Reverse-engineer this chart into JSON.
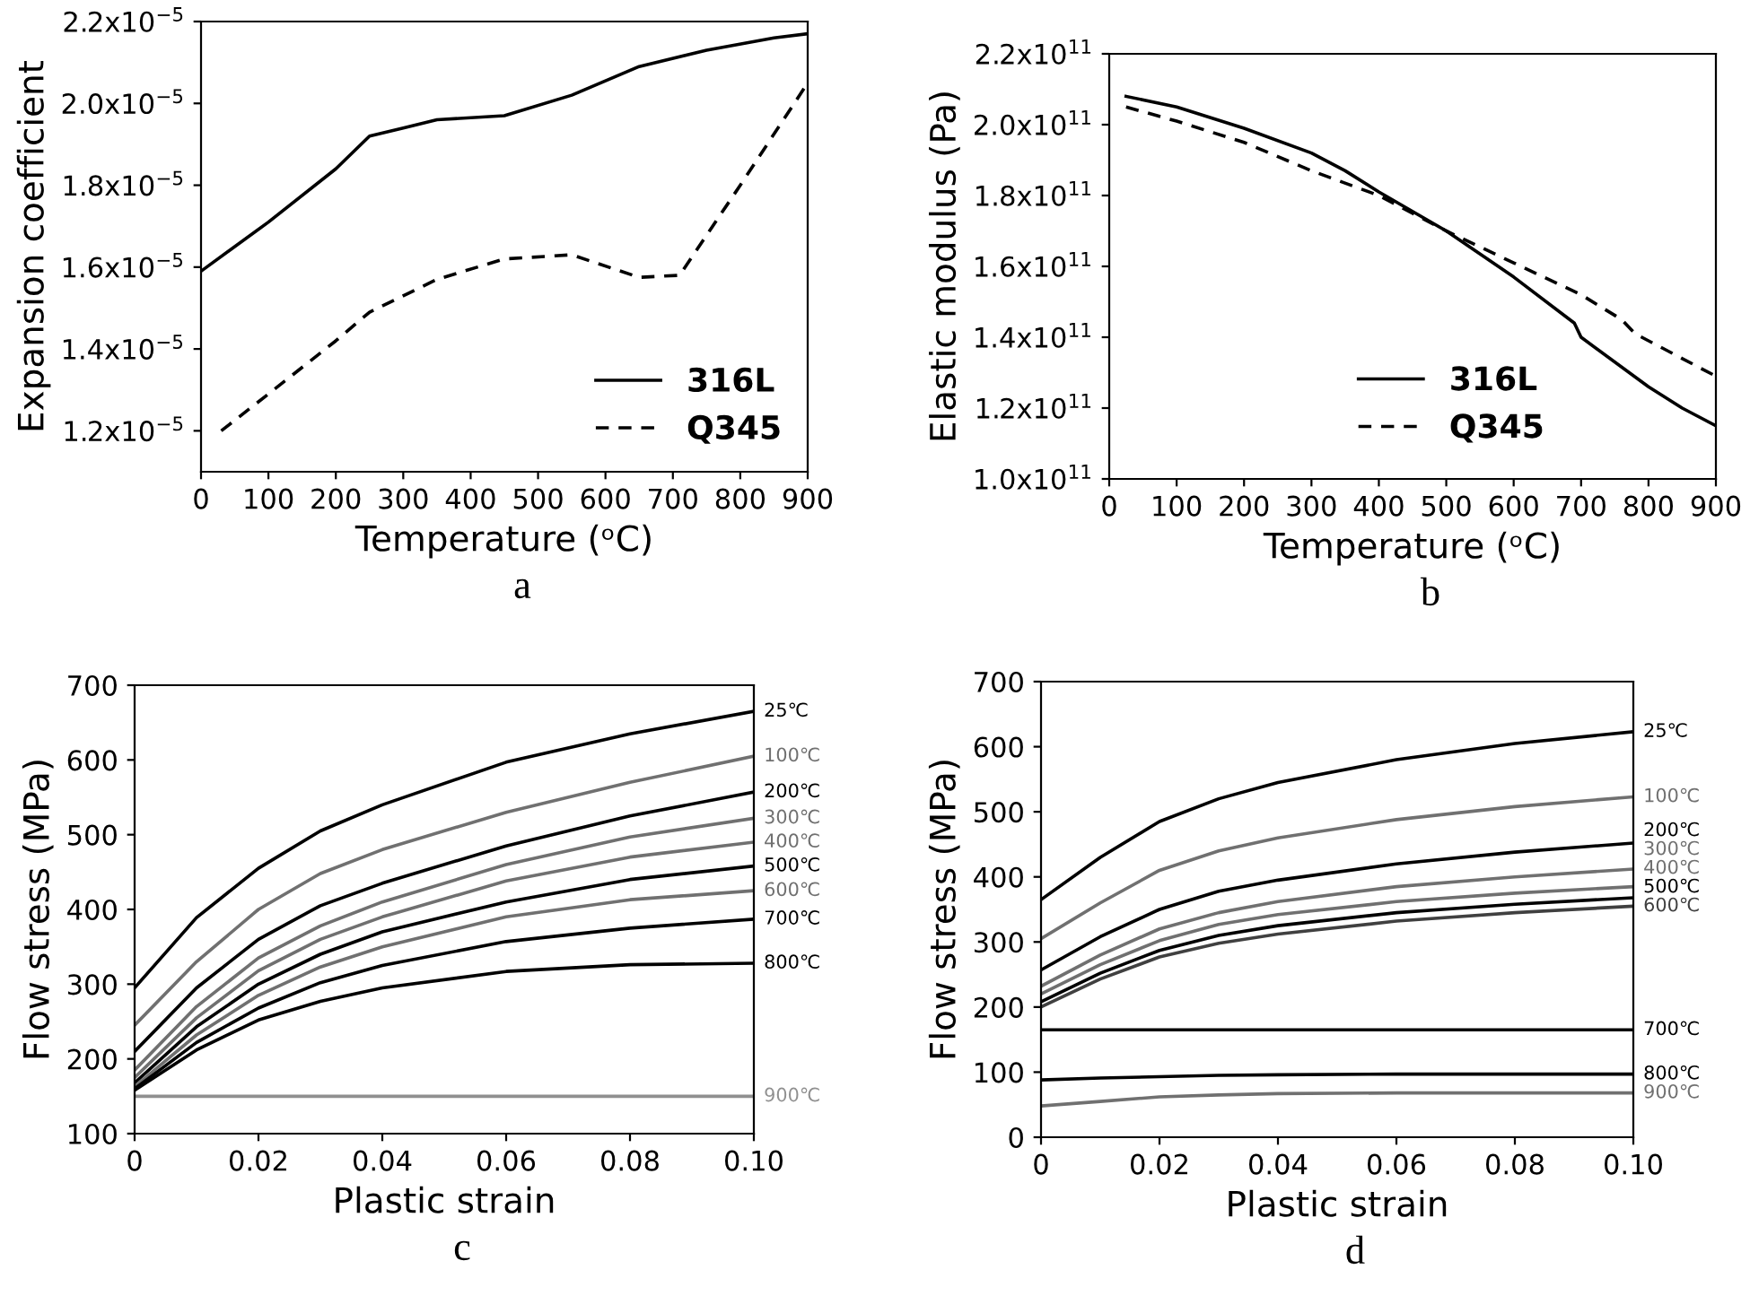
{
  "chart_data": [
    {
      "type": "line",
      "xlabel": "Temperature (ᵒC)",
      "ylabel": "Expansion coefficient",
      "annotations": [
        "a"
      ],
      "legend": "bottom right",
      "xlim": [
        0,
        900
      ],
      "ylim": [
        1.1e-05,
        2.2e-05
      ],
      "xticks": [
        0,
        100,
        200,
        300,
        400,
        500,
        600,
        700,
        800,
        900
      ],
      "yticks": [
        {
          "value": 1.2e-05,
          "label": "1.2x10$^{−5}$"
        },
        {
          "value": 1.4e-05,
          "label": "1.4x10$^{−5}$"
        },
        {
          "value": 1.6e-05,
          "label": "1.6x10$^{−5}$"
        },
        {
          "value": 1.8e-05,
          "label": "1.8x10$^{−5}$"
        },
        {
          "value": 2e-05,
          "label": "2.0x10$^{−5}$"
        },
        {
          "value": 2.2e-05,
          "label": "2.2x10$^{−5}$"
        }
      ],
      "series": [
        {
          "name": "316L",
          "color": "#000000",
          "line_style": "solid",
          "x": [
            0,
            100,
            200,
            250,
            300,
            350,
            450,
            550,
            650,
            750,
            850,
            900
          ],
          "values": [
            1.59e-05,
            1.71e-05,
            1.84e-05,
            1.92e-05,
            1.94e-05,
            1.96e-05,
            1.97e-05,
            2.02e-05,
            2.09e-05,
            2.13e-05,
            2.16e-05,
            2.17e-05
          ]
        },
        {
          "name": "Q345",
          "color": "#000000",
          "line_style": "dashed",
          "x": [
            30,
            100,
            200,
            250,
            350,
            450,
            550,
            650,
            710,
            800,
            900
          ],
          "values": [
            1.2e-05,
            1.29e-05,
            1.42e-05,
            1.49e-05,
            1.57e-05,
            1.62e-05,
            1.63e-05,
            1.575e-05,
            1.58e-05,
            1.8e-05,
            2.05e-05
          ]
        }
      ]
    },
    {
      "type": "line",
      "xlabel": "Temperature (ᵒC)",
      "ylabel": "Elastic modulus (Pa)",
      "annotations": [
        "b"
      ],
      "legend": "bottom right",
      "xlim": [
        0,
        900
      ],
      "ylim": [
        100000000000.0,
        220000000000.0
      ],
      "xticks": [
        0,
        100,
        200,
        300,
        400,
        500,
        600,
        700,
        800,
        900
      ],
      "yticks": [
        {
          "value": 100000000000.0,
          "label": "1.0x10$^{11}$"
        },
        {
          "value": 120000000000.0,
          "label": "1.2x10$^{11}$"
        },
        {
          "value": 140000000000.0,
          "label": "1.4x10$^{11}$"
        },
        {
          "value": 160000000000.0,
          "label": "1.6x10$^{11}$"
        },
        {
          "value": 180000000000.0,
          "label": "1.8x10$^{11}$"
        },
        {
          "value": 200000000000.0,
          "label": "2.0x10$^{11}$"
        },
        {
          "value": 220000000000.0,
          "label": "2.2x10$^{11}$"
        }
      ],
      "series": [
        {
          "name": "316L",
          "color": "#000000",
          "line_style": "solid",
          "x": [
            25,
            100,
            200,
            300,
            350,
            400,
            500,
            600,
            690,
            700,
            800,
            850,
            900
          ],
          "values": [
            208000000000.0,
            205000000000.0,
            199000000000.0,
            192000000000.0,
            187000000000.0,
            181000000000.0,
            170000000000.0,
            157000000000.0,
            144000000000.0,
            140000000000.0,
            126000000000.0,
            120000000000.0,
            115000000000.0
          ]
        },
        {
          "name": "Q345",
          "color": "#000000",
          "line_style": "dashed",
          "x": [
            25,
            100,
            200,
            300,
            400,
            500,
            600,
            700,
            760,
            780,
            900
          ],
          "values": [
            205000000000.0,
            201000000000.0,
            195000000000.0,
            187000000000.0,
            180000000000.0,
            170000000000.0,
            161000000000.0,
            152000000000.0,
            145000000000.0,
            141000000000.0,
            129000000000.0
          ]
        }
      ]
    },
    {
      "type": "line",
      "xlabel": "Plastic strain",
      "ylabel": "Flow stress (MPa)",
      "annotations": [
        "c"
      ],
      "xlim": [
        0,
        0.1
      ],
      "ylim": [
        100,
        700
      ],
      "xticks": [
        0,
        0.02,
        0.04,
        0.06,
        0.08,
        {
          "value": 0.1,
          "label": "0.10"
        }
      ],
      "yticks": [
        100,
        200,
        300,
        400,
        500,
        600,
        700
      ],
      "x": [
        0,
        0.01,
        0.02,
        0.03,
        0.04,
        0.06,
        0.08,
        0.1
      ],
      "series": [
        {
          "name": "25℃",
          "color": "#000000",
          "values": [
            295,
            389,
            455,
            505,
            540,
            597,
            635,
            665
          ]
        },
        {
          "name": "100℃",
          "color": "#707070",
          "values": [
            245,
            330,
            400,
            448,
            480,
            530,
            570,
            605
          ]
        },
        {
          "name": "200℃",
          "color": "#000000",
          "values": [
            210,
            295,
            360,
            405,
            435,
            485,
            525,
            557
          ]
        },
        {
          "name": "300℃",
          "color": "#707070",
          "values": [
            185,
            270,
            335,
            378,
            410,
            460,
            497,
            522
          ]
        },
        {
          "name": "400℃",
          "color": "#707070",
          "values": [
            175,
            255,
            318,
            360,
            390,
            438,
            470,
            490
          ]
        },
        {
          "name": "500℃",
          "color": "#000000",
          "values": [
            168,
            243,
            300,
            340,
            370,
            410,
            440,
            458
          ]
        },
        {
          "name": "600℃",
          "color": "#707070",
          "values": [
            163,
            232,
            285,
            323,
            350,
            390,
            413,
            425
          ]
        },
        {
          "name": "700℃",
          "color": "#000000",
          "values": [
            160,
            222,
            268,
            302,
            325,
            357,
            375,
            387
          ]
        },
        {
          "name": "800℃",
          "color": "#000000",
          "values": [
            158,
            212,
            252,
            277,
            295,
            317,
            326,
            328
          ]
        },
        {
          "name": "900℃",
          "color": "#909090",
          "values": [
            150,
            150,
            150,
            150,
            150,
            150,
            150,
            150
          ]
        }
      ]
    },
    {
      "type": "line",
      "xlabel": "Plastic strain",
      "ylabel": "Flow stress (MPa)",
      "annotations": [
        "d"
      ],
      "xlim": [
        0,
        0.1
      ],
      "ylim": [
        0,
        700
      ],
      "xticks": [
        0,
        0.02,
        0.04,
        0.06,
        0.08,
        {
          "value": 0.1,
          "label": "0.10"
        }
      ],
      "yticks": [
        0,
        100,
        200,
        300,
        400,
        500,
        600,
        700
      ],
      "x": [
        0,
        0.01,
        0.02,
        0.03,
        0.04,
        0.06,
        0.08,
        0.1
      ],
      "series": [
        {
          "name": "25℃",
          "color": "#000000",
          "values": [
            365,
            430,
            485,
            520,
            545,
            580,
            605,
            623
          ]
        },
        {
          "name": "100℃",
          "color": "#707070",
          "values": [
            305,
            360,
            410,
            440,
            460,
            488,
            508,
            523
          ]
        },
        {
          "name": "200℃",
          "color": "#000000",
          "values": [
            257,
            308,
            350,
            378,
            395,
            420,
            438,
            452
          ]
        },
        {
          "name": "300℃",
          "color": "#707070",
          "values": [
            232,
            280,
            320,
            345,
            362,
            385,
            400,
            412
          ]
        },
        {
          "name": "400℃",
          "color": "#707070",
          "values": [
            220,
            265,
            302,
            327,
            342,
            362,
            375,
            385
          ]
        },
        {
          "name": "500℃",
          "color": "#000000",
          "values": [
            208,
            252,
            287,
            310,
            325,
            345,
            358,
            368
          ]
        },
        {
          "name": "600℃",
          "color": "#404040",
          "values": [
            200,
            243,
            277,
            298,
            312,
            332,
            345,
            355
          ]
        },
        {
          "name": "700℃",
          "color": "#000000",
          "values": [
            165,
            165,
            165,
            165,
            165,
            165,
            165,
            165
          ]
        },
        {
          "name": "800℃",
          "color": "#000000",
          "values": [
            88,
            91,
            93,
            95,
            96,
            97,
            97,
            97
          ]
        },
        {
          "name": "900℃",
          "color": "#707070",
          "values": [
            48,
            55,
            62,
            65,
            67,
            68,
            68,
            68
          ]
        }
      ]
    }
  ]
}
